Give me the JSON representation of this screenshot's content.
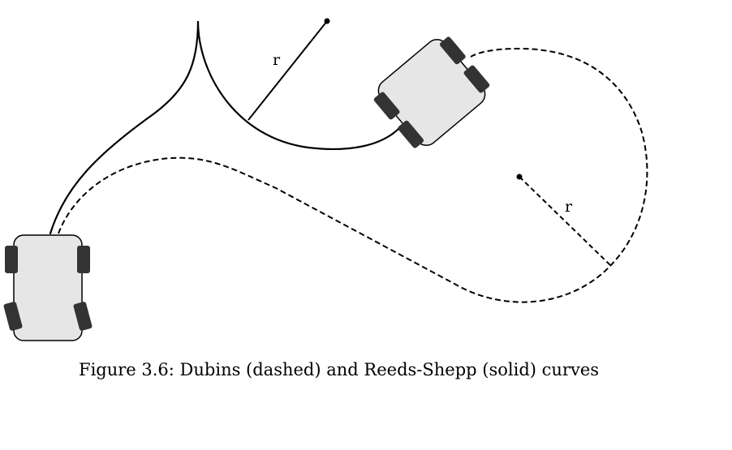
{
  "figure": {
    "caption": "Figure 3.6: Dubins (dashed) and Reeds-Shepp (solid) curves",
    "labels": {
      "radius_solid": "r",
      "radius_dashed": "r"
    },
    "colors": {
      "stroke": "#000000",
      "car_body": "#e6e6e6",
      "wheel": "#333333",
      "background": "#ffffff"
    }
  }
}
